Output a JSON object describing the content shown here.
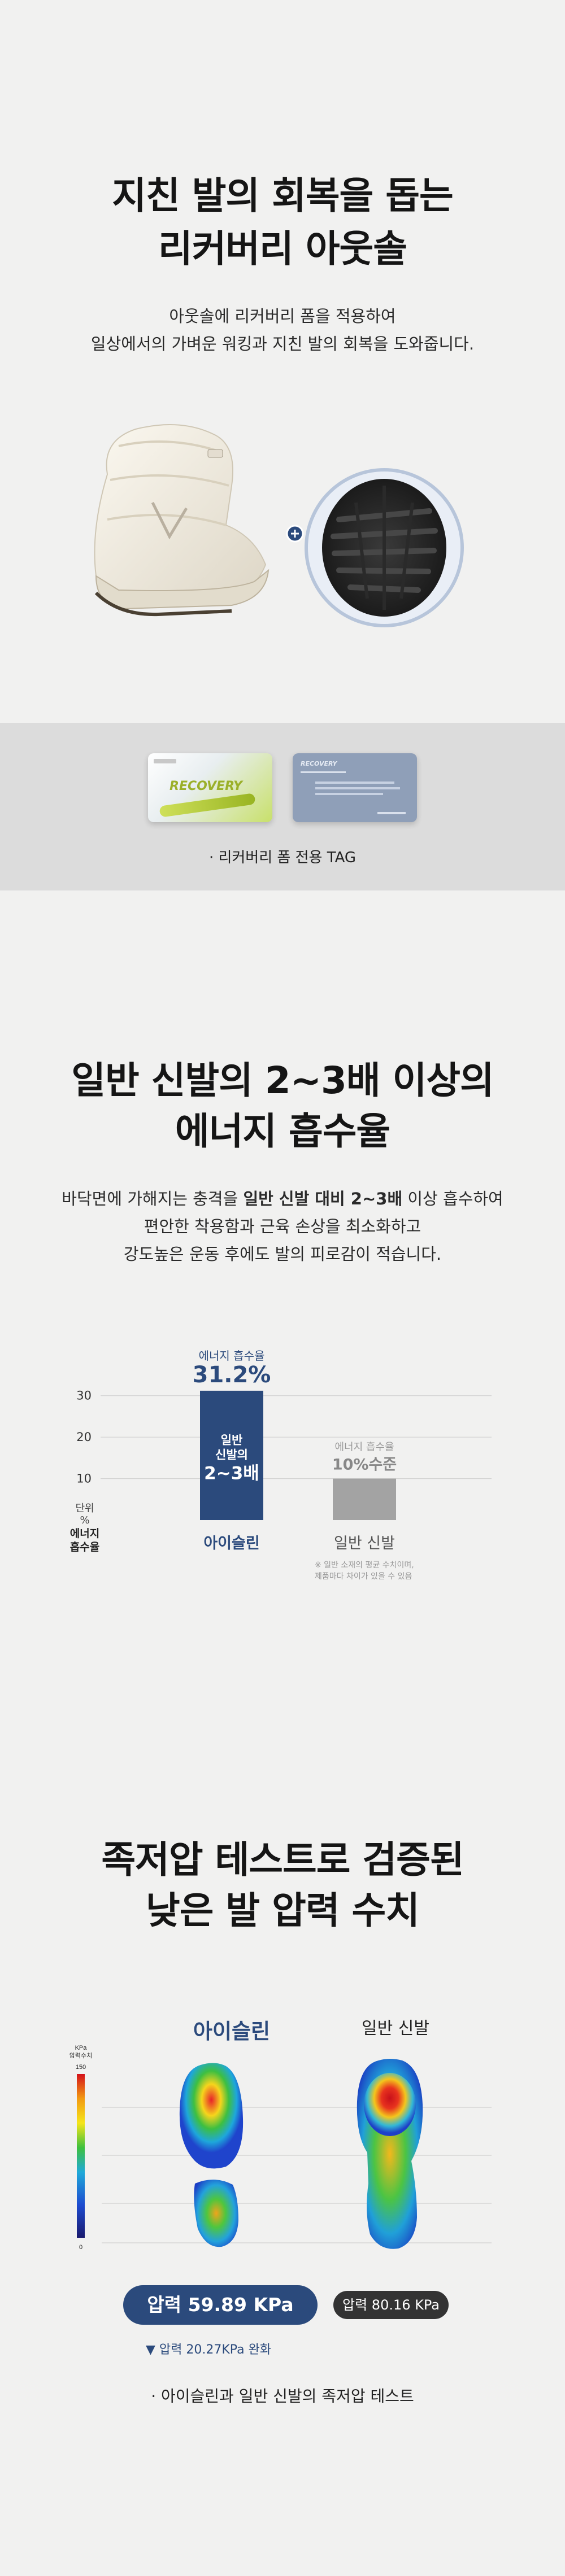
{
  "section1": {
    "title_line1": "지친 발의 회복을 돕는",
    "title_line2": "리커버리 아웃솔",
    "desc_line1": "아웃솔에 리커버리 폼을 적용하여",
    "desc_line2": "일상에서의 가벼운 워킹과 지친 발의 회복을 도와줍니다.",
    "tag1_brand": "RECOVERY",
    "tag2_brand": "RECOVERY",
    "tag_caption": "· 리커버리 폼 전용 TAG"
  },
  "section2": {
    "title_line1": "일반 신발의 2~3배 이상의",
    "title_line2": "에너지 흡수율",
    "desc_line1_a": "바닥면에 가해지는 충격을 ",
    "desc_line1_b": "일반 신발 대비 2~3배",
    "desc_line1_c": " 이상 흡수하여",
    "desc_line2": "편안한 착용함과 근육 손상을 최소화하고",
    "desc_line3": "강도높은 운동 후에도 발의 피로감이 적습니다.",
    "chart_data": {
      "type": "bar",
      "categories": [
        "아이슬린",
        "일반 신발"
      ],
      "values": [
        31.2,
        10
      ],
      "ylim": [
        0,
        35
      ],
      "yticks": [
        10,
        20,
        30
      ],
      "unit_label_line1": "단위",
      "unit_label_line2": "%",
      "ylabel_line1": "에너지",
      "ylabel_line2": "흡수율",
      "bar1_top_label": "에너지 흡수율",
      "bar1_top_value": "31.2%",
      "bar1_inner_line1": "일반",
      "bar1_inner_line2": "신발의",
      "bar1_inner_line3": "2~3배",
      "bar2_top_label": "에너지 흡수율",
      "bar2_top_value": "10%수준",
      "footnote_line1": "※ 일반 소재의 평균 수치이며,",
      "footnote_line2": "제품마다 차이가 있을 수 있음",
      "colors": {
        "main": "#2b4a7c",
        "other": "#a3a3a3"
      },
      "grid": true
    }
  },
  "section3": {
    "title_line1": "족저압 테스트로 검증된",
    "title_line2": "낮은 발 압력 수치",
    "label_left": "아이슬린",
    "label_right": "일반 신발",
    "scale_unit1": "KPa",
    "scale_unit2": "압력수치",
    "scale_max": "150",
    "scale_min": "0",
    "pill_main": "압력 59.89 KPa",
    "pill_normal": "압력 80.16 KPa",
    "relief": "▼ 압력 20.27KPa 완화",
    "caption": "·  아이슬린과 일반 신발의 족저압 테스트"
  }
}
